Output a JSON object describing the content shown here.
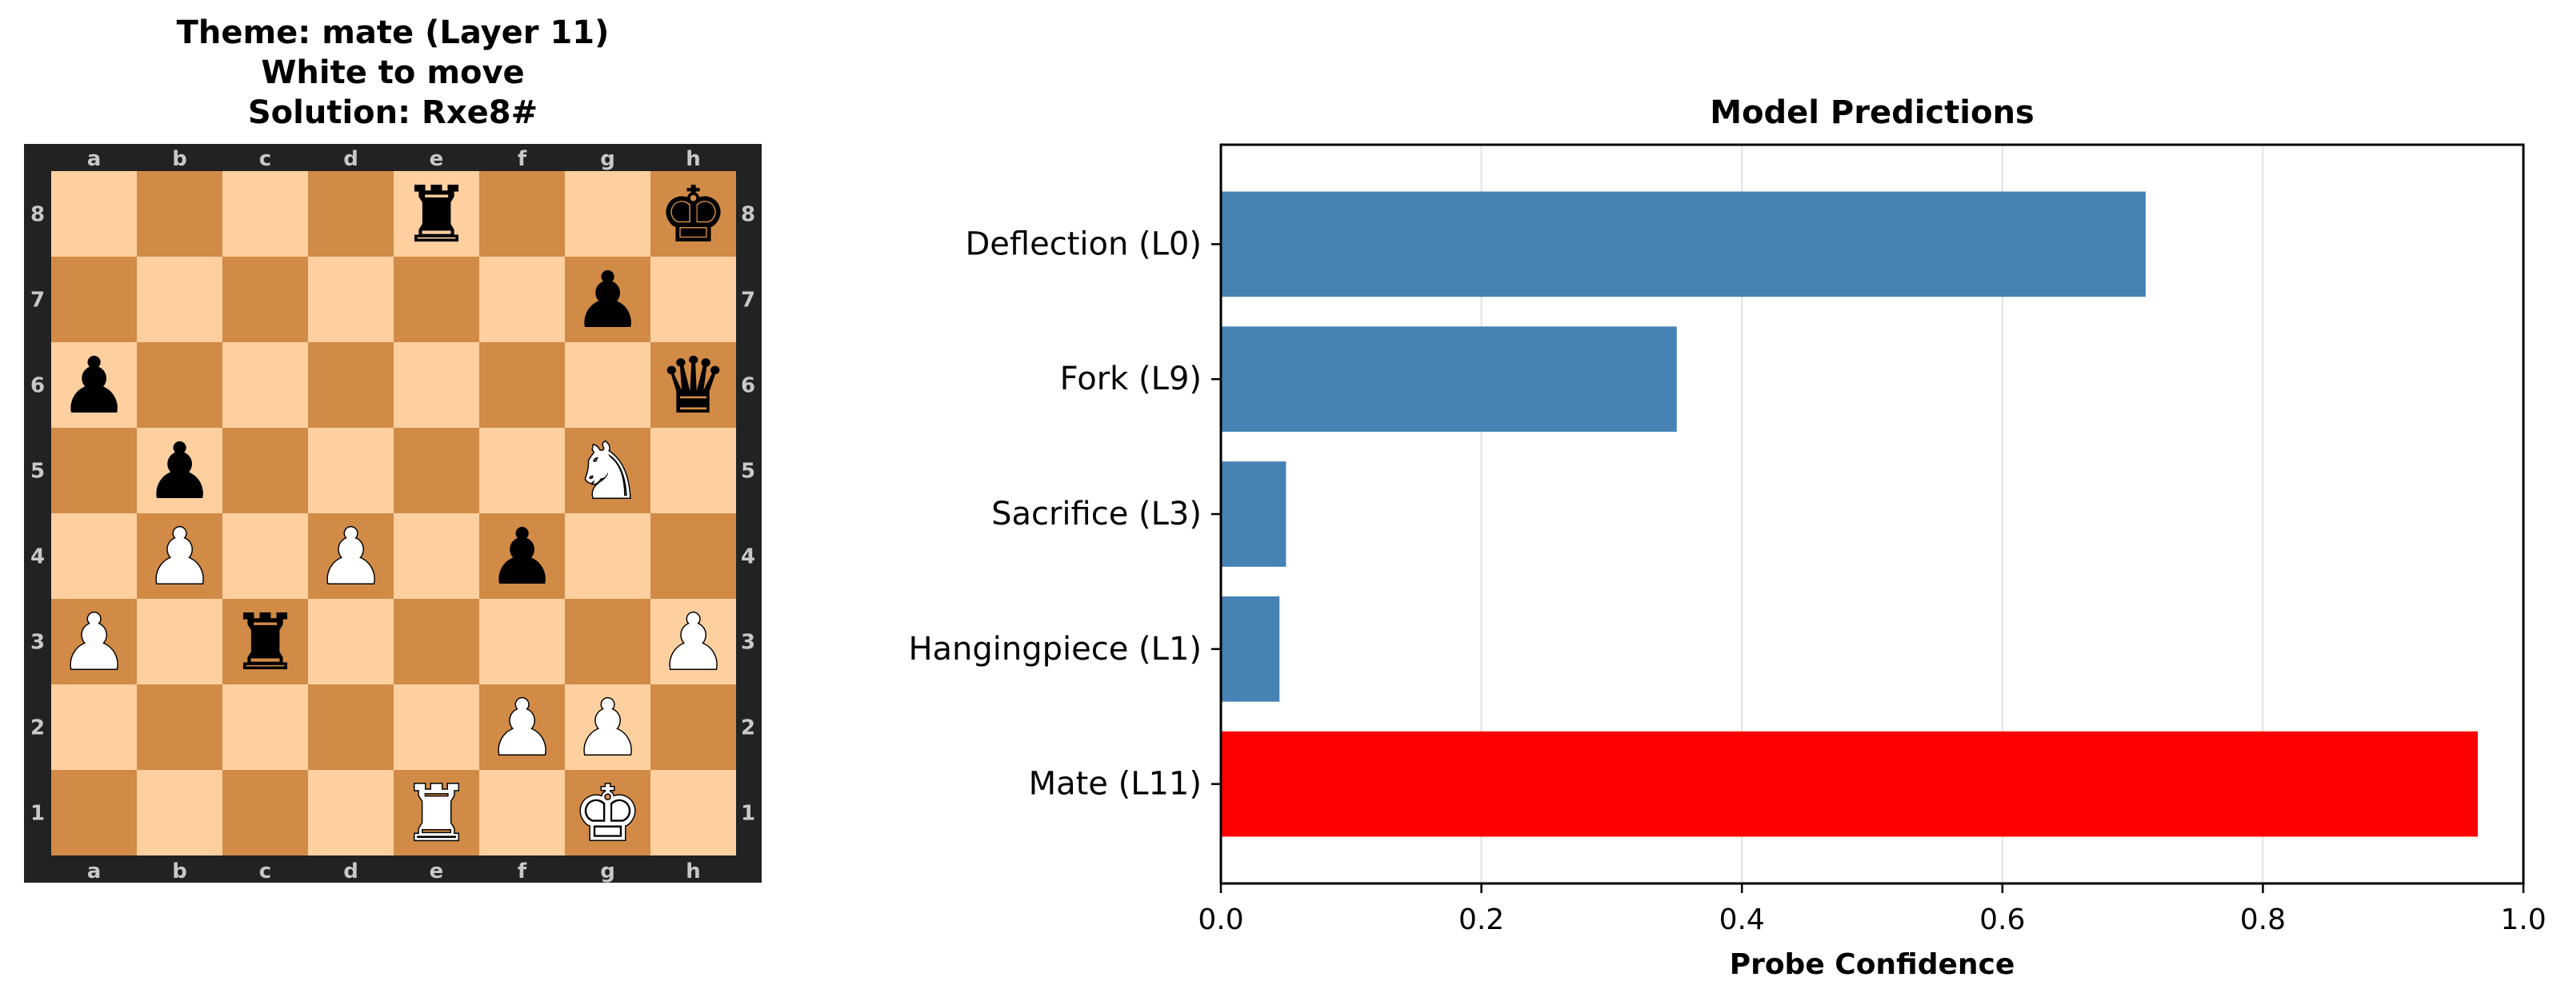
{
  "board_panel": {
    "title_lines": [
      "Theme: mate (Layer 11)",
      "White to move",
      "Solution: Rxe8#"
    ],
    "files": [
      "a",
      "b",
      "c",
      "d",
      "e",
      "f",
      "g",
      "h"
    ],
    "ranks": [
      "8",
      "7",
      "6",
      "5",
      "4",
      "3",
      "2",
      "1"
    ],
    "light_square_color": "#fed0a0",
    "dark_square_color": "#d18b47",
    "frame_color": "#222222",
    "side_to_move": "white",
    "position_rows": [
      "....r..k",
      "......p.",
      "p......q",
      ".p....N.",
      ".P.P.p..",
      "P.r....P",
      ".....PP.",
      "....R.K."
    ]
  },
  "chart_data": {
    "type": "bar",
    "orientation": "horizontal",
    "title": "Model Predictions",
    "xlabel": "Probe Confidence",
    "ylabel": "",
    "categories": [
      "Deflection (L0)",
      "Fork (L9)",
      "Sacrifice (L3)",
      "Hangingpiece (L1)",
      "Mate (L11)"
    ],
    "values": [
      0.71,
      0.35,
      0.05,
      0.045,
      0.965
    ],
    "colors": [
      "#4682b4",
      "#4682b4",
      "#4682b4",
      "#4682b4",
      "#ff0000"
    ],
    "xlim": [
      0.0,
      1.0
    ],
    "xticks": [
      "0.0",
      "0.2",
      "0.4",
      "0.6",
      "0.8",
      "1.0"
    ],
    "grid": "vertical",
    "legend": "none"
  }
}
